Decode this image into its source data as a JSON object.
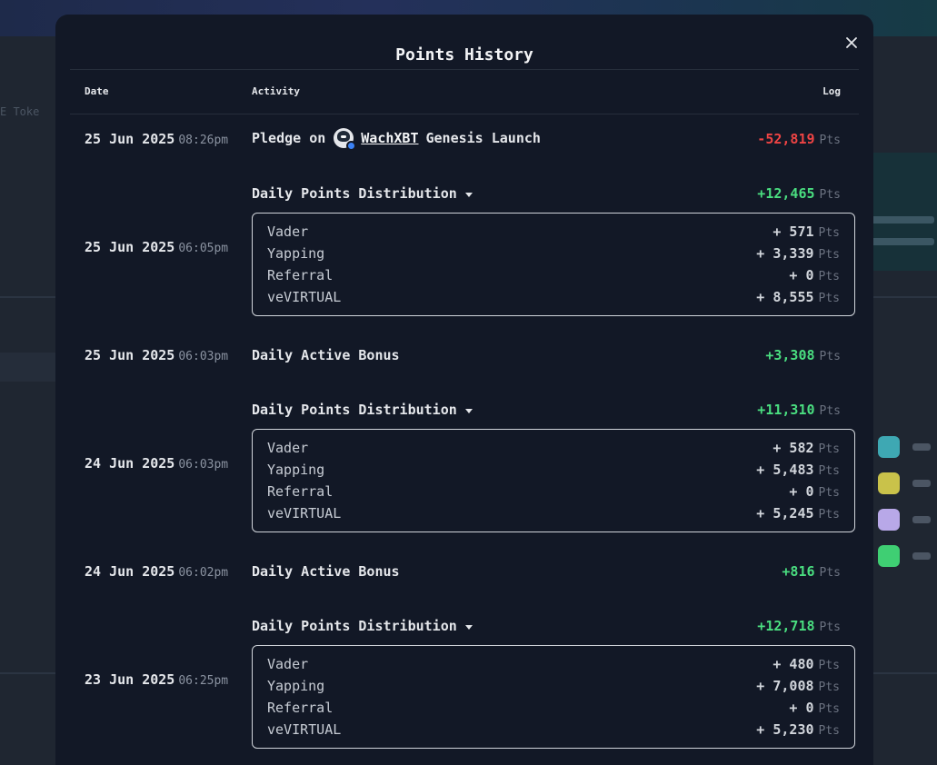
{
  "background": {
    "left_text": "E Toke"
  },
  "modal": {
    "title": "Points History",
    "close_icon": "close-icon",
    "columns": {
      "date": "Date",
      "activity": "Activity",
      "log": "Log"
    }
  },
  "rows": [
    {
      "date": "25 Jun 2025",
      "time": "08:26pm",
      "activity_prefix": "Pledge on",
      "agent": "WachXBT",
      "activity_suffix": "Genesis Launch",
      "value": "-52,819",
      "unit": "Pts",
      "tone": "negative"
    },
    {
      "date": "25 Jun 2025",
      "time": "06:05pm",
      "activity": "Daily Points Distribution",
      "value": "+12,465",
      "unit": "Pts",
      "tone": "positive",
      "breakdown": [
        {
          "label": "Vader",
          "value": "+ 571",
          "unit": "Pts"
        },
        {
          "label": "Yapping",
          "value": "+ 3,339",
          "unit": "Pts"
        },
        {
          "label": "Referral",
          "value": "+ 0",
          "unit": "Pts"
        },
        {
          "label": "veVIRTUAL",
          "value": "+ 8,555",
          "unit": "Pts"
        }
      ]
    },
    {
      "date": "25 Jun 2025",
      "time": "06:03pm",
      "activity": "Daily Active Bonus",
      "value": "+3,308",
      "unit": "Pts",
      "tone": "positive"
    },
    {
      "date": "24 Jun 2025",
      "time": "06:03pm",
      "activity": "Daily Points Distribution",
      "value": "+11,310",
      "unit": "Pts",
      "tone": "positive",
      "breakdown": [
        {
          "label": "Vader",
          "value": "+ 582",
          "unit": "Pts"
        },
        {
          "label": "Yapping",
          "value": "+ 5,483",
          "unit": "Pts"
        },
        {
          "label": "Referral",
          "value": "+ 0",
          "unit": "Pts"
        },
        {
          "label": "veVIRTUAL",
          "value": "+ 5,245",
          "unit": "Pts"
        }
      ]
    },
    {
      "date": "24 Jun 2025",
      "time": "06:02pm",
      "activity": "Daily Active Bonus",
      "value": "+816",
      "unit": "Pts",
      "tone": "positive"
    },
    {
      "date": "23 Jun 2025",
      "time": "06:25pm",
      "activity": "Daily Points Distribution",
      "value": "+12,718",
      "unit": "Pts",
      "tone": "positive",
      "breakdown": [
        {
          "label": "Vader",
          "value": "+ 480",
          "unit": "Pts"
        },
        {
          "label": "Yapping",
          "value": "+ 7,008",
          "unit": "Pts"
        },
        {
          "label": "Referral",
          "value": "+ 0",
          "unit": "Pts"
        },
        {
          "label": "veVIRTUAL",
          "value": "+ 5,230",
          "unit": "Pts"
        }
      ]
    }
  ],
  "colors": {
    "positive": "#4ade80",
    "negative": "#ef4444",
    "modal_bg": "#121826"
  }
}
